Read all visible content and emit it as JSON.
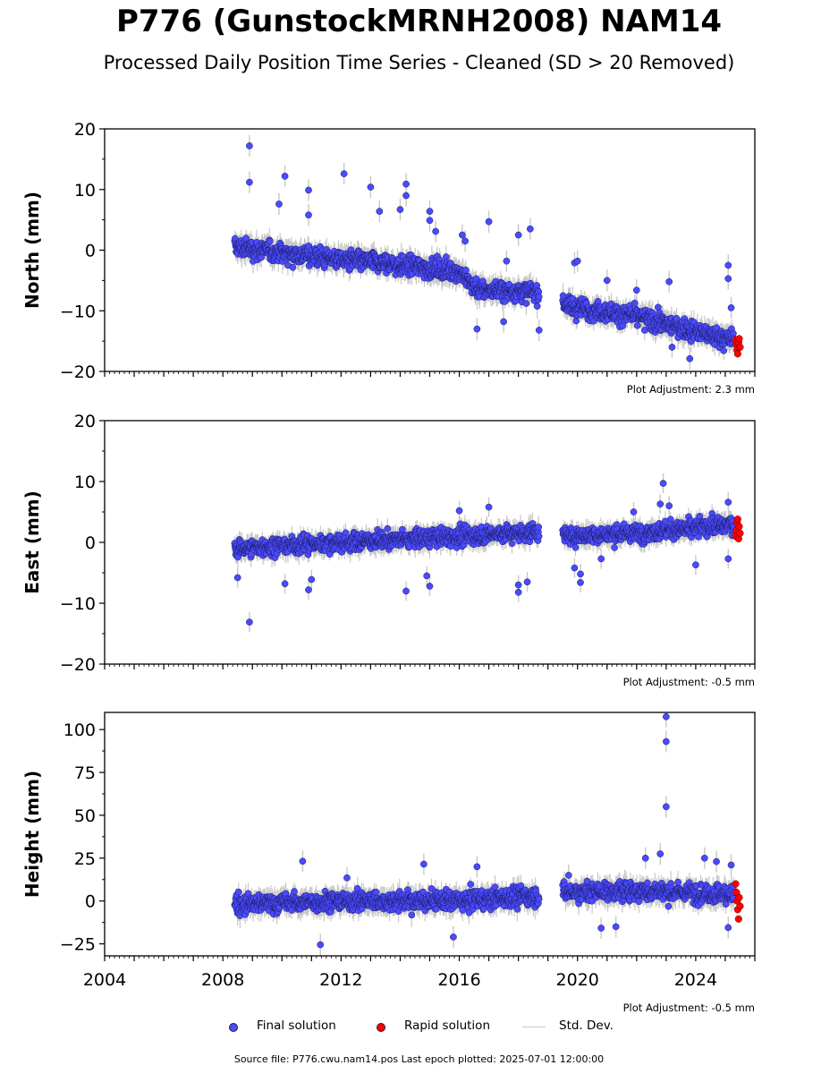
{
  "title": "P776 (GunstockMRNH2008) NAM14",
  "subtitle": "Processed Daily Position Time Series - Cleaned (SD > 20 Removed)",
  "source_text": "Source file: P776.cwu.nam14.pos  Last epoch plotted: 2025-07-01 12:00:00",
  "colors": {
    "final": "#4a4aff",
    "rapid": "#ff0000",
    "stddev": "#c8c8c8",
    "edge": "#1a1a5a"
  },
  "legend": [
    {
      "label": "Final solution",
      "kind": "dot",
      "color": "#4a4aff"
    },
    {
      "label": "Rapid solution",
      "kind": "dot",
      "color": "#ff0000"
    },
    {
      "label": "Std. Dev.",
      "kind": "line",
      "color": "#c8c8c8"
    }
  ],
  "chart_data": [
    {
      "type": "scatter",
      "ylabel": "North (mm)",
      "xlim": [
        2004,
        2026
      ],
      "ylim": [
        -20,
        20
      ],
      "yticks": [
        -20,
        -10,
        0,
        10,
        20
      ],
      "xticks": [
        2004,
        2008,
        2012,
        2016,
        2020,
        2024
      ],
      "show_x_tick_labels": false,
      "adjustment": "Plot Adjustment: 2.3 mm",
      "trend": [
        [
          2008.4,
          0.5
        ],
        [
          2012,
          -1.5
        ],
        [
          2016,
          -3.5
        ],
        [
          2016.6,
          -6.5
        ],
        [
          2018.7,
          -7
        ],
        [
          2019.5,
          -9
        ],
        [
          2022,
          -11
        ],
        [
          2024.5,
          -14
        ],
        [
          2025.4,
          -15
        ]
      ],
      "noise": 2.0,
      "outliers": [
        [
          2008.9,
          17.2
        ],
        [
          2008.9,
          11.2
        ],
        [
          2010.1,
          12.2
        ],
        [
          2009.9,
          7.6
        ],
        [
          2010.9,
          9.9
        ],
        [
          2010.9,
          5.8
        ],
        [
          2012.1,
          12.6
        ],
        [
          2013.0,
          10.4
        ],
        [
          2013.3,
          6.4
        ],
        [
          2014.2,
          10.9
        ],
        [
          2014.2,
          9.0
        ],
        [
          2014.0,
          6.7
        ],
        [
          2015.0,
          6.4
        ],
        [
          2015.0,
          4.9
        ],
        [
          2015.2,
          3.1
        ],
        [
          2016.1,
          2.5
        ],
        [
          2016.2,
          1.5
        ],
        [
          2017.0,
          4.7
        ],
        [
          2017.6,
          -1.8
        ],
        [
          2016.6,
          -13.0
        ],
        [
          2017.5,
          -11.8
        ],
        [
          2018.4,
          3.5
        ],
        [
          2018.0,
          2.5
        ],
        [
          2018.7,
          -13.2
        ],
        [
          2019.9,
          -2.1
        ],
        [
          2020.0,
          -1.8
        ],
        [
          2021.0,
          -5.0
        ],
        [
          2022.0,
          -6.6
        ],
        [
          2023.1,
          -5.2
        ],
        [
          2023.2,
          -16.0
        ],
        [
          2023.8,
          -17.9
        ],
        [
          2025.1,
          -2.5
        ],
        [
          2025.1,
          -4.7
        ],
        [
          2025.2,
          -9.5
        ]
      ],
      "rapid": [
        [
          2025.35,
          -14.8
        ],
        [
          2025.38,
          -15.6
        ],
        [
          2025.4,
          -16.5
        ],
        [
          2025.42,
          -17.1
        ],
        [
          2025.45,
          -15.2
        ],
        [
          2025.47,
          -14.6
        ],
        [
          2025.5,
          -16.0
        ]
      ]
    },
    {
      "type": "scatter",
      "ylabel": "East (mm)",
      "xlim": [
        2004,
        2026
      ],
      "ylim": [
        -20,
        20
      ],
      "yticks": [
        -20,
        -10,
        0,
        10,
        20
      ],
      "xticks": [
        2004,
        2008,
        2012,
        2016,
        2020,
        2024
      ],
      "show_x_tick_labels": false,
      "adjustment": "Plot Adjustment: -0.5 mm",
      "trend": [
        [
          2008.4,
          -1
        ],
        [
          2012,
          0
        ],
        [
          2016,
          1
        ],
        [
          2018.7,
          1.8
        ],
        [
          2019.5,
          1
        ],
        [
          2022,
          1.5
        ],
        [
          2025.4,
          3
        ]
      ],
      "noise": 1.8,
      "outliers": [
        [
          2008.9,
          -13.1
        ],
        [
          2008.5,
          -5.8
        ],
        [
          2010.1,
          -6.8
        ],
        [
          2010.9,
          -7.8
        ],
        [
          2011.0,
          -6.1
        ],
        [
          2014.2,
          -8.0
        ],
        [
          2015.0,
          -7.2
        ],
        [
          2014.9,
          -5.5
        ],
        [
          2016.0,
          5.2
        ],
        [
          2017.0,
          5.8
        ],
        [
          2018.0,
          -7.0
        ],
        [
          2018.0,
          -8.2
        ],
        [
          2018.3,
          -6.5
        ],
        [
          2019.9,
          -4.2
        ],
        [
          2020.1,
          -6.6
        ],
        [
          2020.1,
          -5.2
        ],
        [
          2020.8,
          -2.7
        ],
        [
          2021.9,
          5.0
        ],
        [
          2022.9,
          9.7
        ],
        [
          2022.8,
          6.3
        ],
        [
          2023.1,
          6.0
        ],
        [
          2024.0,
          -3.7
        ],
        [
          2025.1,
          -2.7
        ],
        [
          2025.1,
          6.6
        ]
      ],
      "rapid": [
        [
          2025.35,
          1.0
        ],
        [
          2025.38,
          2.0
        ],
        [
          2025.4,
          3.2
        ],
        [
          2025.42,
          3.8
        ],
        [
          2025.45,
          0.6
        ],
        [
          2025.47,
          2.6
        ],
        [
          2025.5,
          1.5
        ]
      ]
    },
    {
      "type": "scatter",
      "ylabel": "Height (mm)",
      "xlim": [
        2004,
        2026
      ],
      "ylim": [
        -32,
        110
      ],
      "yticks": [
        -25,
        0,
        25,
        50,
        75,
        100
      ],
      "xticks": [
        2004,
        2008,
        2012,
        2016,
        2020,
        2024
      ],
      "show_x_tick_labels": true,
      "adjustment": "Plot Adjustment: -0.5 mm",
      "trend": [
        [
          2008.4,
          -2
        ],
        [
          2012,
          0
        ],
        [
          2016,
          0
        ],
        [
          2018.7,
          3
        ],
        [
          2019.5,
          5
        ],
        [
          2022,
          6
        ],
        [
          2025.4,
          4
        ]
      ],
      "noise": 7.0,
      "outliers": [
        [
          2011.3,
          -25.5
        ],
        [
          2010.7,
          23.2
        ],
        [
          2012.2,
          13.5
        ],
        [
          2014.8,
          21.5
        ],
        [
          2016.6,
          20.0
        ],
        [
          2015.8,
          -21.0
        ],
        [
          2019.7,
          15.0
        ],
        [
          2020.8,
          -15.8
        ],
        [
          2021.3,
          -15.0
        ],
        [
          2022.8,
          27.5
        ],
        [
          2022.3,
          25.0
        ],
        [
          2023.0,
          107.5
        ],
        [
          2023.0,
          93.0
        ],
        [
          2023.0,
          55.0
        ],
        [
          2024.3,
          25.0
        ],
        [
          2024.7,
          23.0
        ],
        [
          2025.1,
          -15.5
        ],
        [
          2025.2,
          21.0
        ]
      ],
      "rapid": [
        [
          2025.35,
          10.0
        ],
        [
          2025.38,
          5.0
        ],
        [
          2025.4,
          0.0
        ],
        [
          2025.42,
          -5.0
        ],
        [
          2025.45,
          -10.5
        ],
        [
          2025.47,
          2.0
        ],
        [
          2025.5,
          -3.0
        ]
      ]
    }
  ]
}
